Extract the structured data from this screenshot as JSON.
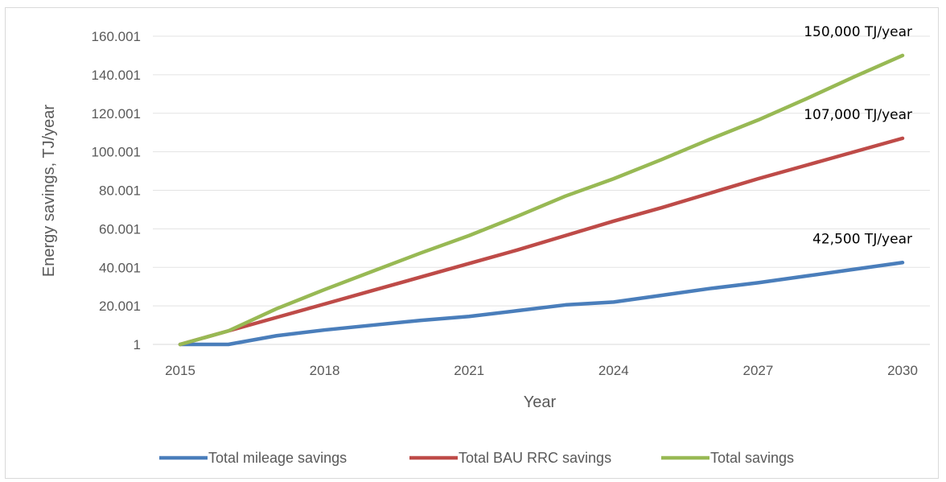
{
  "chart_data": {
    "type": "line",
    "title": "",
    "xlabel": "Year",
    "ylabel": "Energy savings, TJ/year",
    "x": [
      2015,
      2016,
      2017,
      2018,
      2019,
      2020,
      2021,
      2022,
      2023,
      2024,
      2025,
      2026,
      2027,
      2028,
      2029,
      2030
    ],
    "x_ticks": [
      "2015",
      "2018",
      "2021",
      "2024",
      "2027",
      "2030"
    ],
    "y_ticks": [
      "1",
      "20.001",
      "40.001",
      "60.001",
      "80.001",
      "100.001",
      "120.001",
      "140.001",
      "160.001"
    ],
    "ylim": [
      1,
      160001
    ],
    "grid": "horizontal",
    "legend_position": "bottom",
    "series": [
      {
        "name": "Total mileage savings",
        "color": "#4a7ebb",
        "values": [
          1,
          1,
          4500,
          7500,
          10000,
          12500,
          14500,
          17500,
          20500,
          22000,
          25500,
          29000,
          32000,
          35500,
          39000,
          42500
        ]
      },
      {
        "name": "Total BAU RRC savings",
        "color": "#be4b48",
        "values": [
          1,
          7000,
          14000,
          21000,
          28000,
          35000,
          42000,
          49000,
          56500,
          64000,
          71000,
          78500,
          86000,
          93000,
          100000,
          107000
        ]
      },
      {
        "name": "Total savings",
        "color": "#98b954",
        "values": [
          1,
          7000,
          18500,
          28500,
          38000,
          47500,
          56500,
          66500,
          77000,
          86000,
          96000,
          106500,
          116500,
          127500,
          139000,
          150000
        ]
      }
    ],
    "annotations": [
      {
        "text": "150,000 TJ/year",
        "x": 2030,
        "y": 150000
      },
      {
        "text": "107,000 TJ/year",
        "x": 2030,
        "y": 107000
      },
      {
        "text": "42,500 TJ/year",
        "x": 2030,
        "y": 42500
      }
    ]
  }
}
